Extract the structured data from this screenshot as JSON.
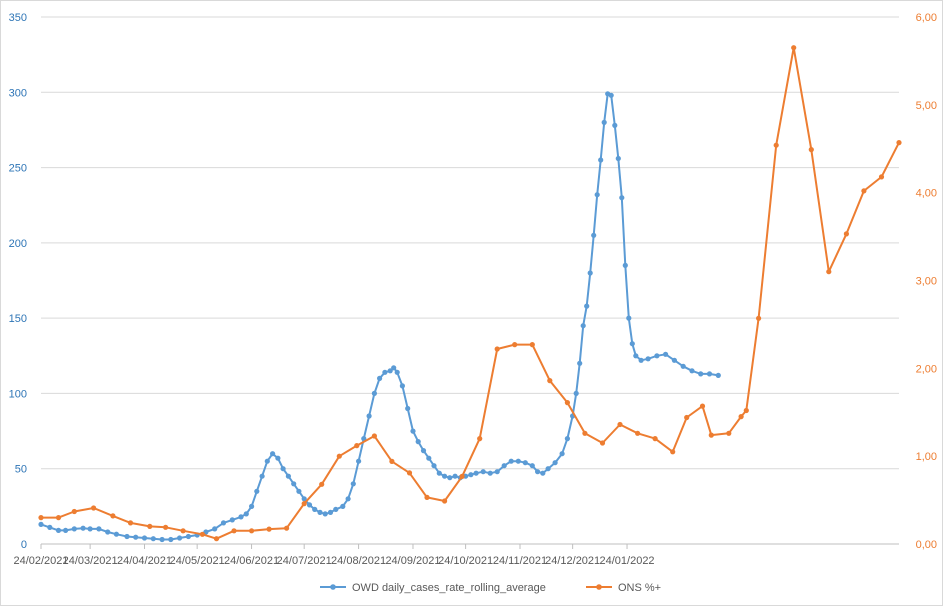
{
  "chart_data": {
    "type": "line",
    "x_type": "date",
    "x_ticks": [
      "24/02/2021",
      "24/03/2021",
      "24/04/2021",
      "24/05/2021",
      "24/06/2021",
      "24/07/2021",
      "24/08/2021",
      "24/09/2021",
      "24/10/2021",
      "24/11/2021",
      "24/12/2021",
      "24/01/2022"
    ],
    "y_left": {
      "ylim": [
        0,
        350
      ],
      "ticks": [
        "0",
        "50",
        "100",
        "150",
        "200",
        "250",
        "300",
        "350"
      ],
      "color": "#2e75b6"
    },
    "y_right": {
      "ylim": [
        0,
        6
      ],
      "ticks": [
        "0,00",
        "1,00",
        "2,00",
        "3,00",
        "4,00",
        "5,00",
        "6,00"
      ],
      "color": "#ed7d31"
    },
    "grid": "horizontal",
    "legend_position": "bottom",
    "series": [
      {
        "name": "OWD daily_cases_rate_rolling_average",
        "axis": "left",
        "color": "#5b9bd5",
        "marker": "circle",
        "points": [
          [
            "2021-02-24",
            13
          ],
          [
            "2021-03-01",
            11
          ],
          [
            "2021-03-06",
            9
          ],
          [
            "2021-03-10",
            9
          ],
          [
            "2021-03-15",
            10
          ],
          [
            "2021-03-20",
            10.5
          ],
          [
            "2021-03-24",
            10
          ],
          [
            "2021-03-29",
            10
          ],
          [
            "2021-04-03",
            8
          ],
          [
            "2021-04-08",
            6.5
          ],
          [
            "2021-04-14",
            5
          ],
          [
            "2021-04-19",
            4.5
          ],
          [
            "2021-04-24",
            4
          ],
          [
            "2021-04-29",
            3.5
          ],
          [
            "2021-05-04",
            3
          ],
          [
            "2021-05-09",
            3
          ],
          [
            "2021-05-14",
            4
          ],
          [
            "2021-05-19",
            5
          ],
          [
            "2021-05-24",
            6
          ],
          [
            "2021-05-29",
            8
          ],
          [
            "2021-06-03",
            10
          ],
          [
            "2021-06-08",
            14
          ],
          [
            "2021-06-13",
            16
          ],
          [
            "2021-06-18",
            18
          ],
          [
            "2021-06-21",
            20
          ],
          [
            "2021-06-24",
            25
          ],
          [
            "2021-06-27",
            35
          ],
          [
            "2021-06-30",
            45
          ],
          [
            "2021-07-03",
            55
          ],
          [
            "2021-07-06",
            60
          ],
          [
            "2021-07-09",
            57
          ],
          [
            "2021-07-12",
            50
          ],
          [
            "2021-07-15",
            45
          ],
          [
            "2021-07-18",
            40
          ],
          [
            "2021-07-21",
            35
          ],
          [
            "2021-07-24",
            30
          ],
          [
            "2021-07-27",
            26
          ],
          [
            "2021-07-30",
            23
          ],
          [
            "2021-08-02",
            21
          ],
          [
            "2021-08-05",
            20
          ],
          [
            "2021-08-08",
            21
          ],
          [
            "2021-08-11",
            23
          ],
          [
            "2021-08-15",
            25
          ],
          [
            "2021-08-18",
            30
          ],
          [
            "2021-08-21",
            40
          ],
          [
            "2021-08-24",
            55
          ],
          [
            "2021-08-27",
            70
          ],
          [
            "2021-08-30",
            85
          ],
          [
            "2021-09-02",
            100
          ],
          [
            "2021-09-05",
            110
          ],
          [
            "2021-09-08",
            114
          ],
          [
            "2021-09-11",
            115
          ],
          [
            "2021-09-13",
            117
          ],
          [
            "2021-09-15",
            114
          ],
          [
            "2021-09-18",
            105
          ],
          [
            "2021-09-21",
            90
          ],
          [
            "2021-09-24",
            75
          ],
          [
            "2021-09-27",
            68
          ],
          [
            "2021-09-30",
            62
          ],
          [
            "2021-10-03",
            57
          ],
          [
            "2021-10-06",
            52
          ],
          [
            "2021-10-09",
            47
          ],
          [
            "2021-10-12",
            45
          ],
          [
            "2021-10-15",
            44
          ],
          [
            "2021-10-18",
            45
          ],
          [
            "2021-10-21",
            44
          ],
          [
            "2021-10-24",
            45
          ],
          [
            "2021-10-27",
            46
          ],
          [
            "2021-10-30",
            47
          ],
          [
            "2021-11-03",
            48
          ],
          [
            "2021-11-07",
            47
          ],
          [
            "2021-11-11",
            48
          ],
          [
            "2021-11-15",
            52
          ],
          [
            "2021-11-19",
            55
          ],
          [
            "2021-11-23",
            55
          ],
          [
            "2021-11-27",
            54
          ],
          [
            "2021-12-01",
            52
          ],
          [
            "2021-12-04",
            48
          ],
          [
            "2021-12-07",
            47
          ],
          [
            "2021-12-10",
            50
          ],
          [
            "2021-12-14",
            54
          ],
          [
            "2021-12-18",
            60
          ],
          [
            "2021-12-21",
            70
          ],
          [
            "2021-12-24",
            85
          ],
          [
            "2021-12-26",
            100
          ],
          [
            "2021-12-28",
            120
          ],
          [
            "2021-12-30",
            145
          ],
          [
            "2022-01-01",
            158
          ],
          [
            "2022-01-03",
            180
          ],
          [
            "2022-01-05",
            205
          ],
          [
            "2022-01-07",
            232
          ],
          [
            "2022-01-09",
            255
          ],
          [
            "2022-01-11",
            280
          ],
          [
            "2022-01-13",
            299
          ],
          [
            "2022-01-15",
            298
          ],
          [
            "2022-01-17",
            278
          ],
          [
            "2022-01-19",
            256
          ],
          [
            "2022-01-21",
            230
          ],
          [
            "2022-01-23",
            185
          ],
          [
            "2022-01-25",
            150
          ],
          [
            "2022-01-27",
            133
          ],
          [
            "2022-01-29",
            125
          ],
          [
            "2022-02-01",
            122
          ],
          [
            "2022-02-05",
            123
          ],
          [
            "2022-02-10",
            125
          ],
          [
            "2022-02-15",
            126
          ],
          [
            "2022-02-20",
            122
          ],
          [
            "2022-02-25",
            118
          ],
          [
            "2022-03-02",
            115
          ],
          [
            "2022-03-07",
            113
          ],
          [
            "2022-03-12",
            113
          ],
          [
            "2022-03-17",
            112
          ]
        ]
      },
      {
        "name": "ONS %+",
        "axis": "right",
        "color": "#ed7d31",
        "marker": "circle",
        "points": [
          [
            "2021-02-24",
            0.3
          ],
          [
            "2021-03-06",
            0.3
          ],
          [
            "2021-03-15",
            0.37
          ],
          [
            "2021-03-26",
            0.41
          ],
          [
            "2021-04-06",
            0.32
          ],
          [
            "2021-04-16",
            0.24
          ],
          [
            "2021-04-27",
            0.2
          ],
          [
            "2021-05-06",
            0.19
          ],
          [
            "2021-05-16",
            0.15
          ],
          [
            "2021-05-27",
            0.11
          ],
          [
            "2021-06-04",
            0.06
          ],
          [
            "2021-06-14",
            0.15
          ],
          [
            "2021-06-24",
            0.15
          ],
          [
            "2021-07-04",
            0.17
          ],
          [
            "2021-07-14",
            0.18
          ],
          [
            "2021-07-24",
            0.46
          ],
          [
            "2021-08-03",
            0.68
          ],
          [
            "2021-08-13",
            1.0
          ],
          [
            "2021-08-23",
            1.12
          ],
          [
            "2021-09-02",
            1.23
          ],
          [
            "2021-09-12",
            0.94
          ],
          [
            "2021-09-22",
            0.81
          ],
          [
            "2021-10-02",
            0.53
          ],
          [
            "2021-10-12",
            0.49
          ],
          [
            "2021-10-22",
            0.77
          ],
          [
            "2021-11-01",
            1.2
          ],
          [
            "2021-11-11",
            2.22
          ],
          [
            "2021-11-21",
            2.27
          ],
          [
            "2021-12-01",
            2.27
          ],
          [
            "2021-12-11",
            1.86
          ],
          [
            "2021-12-21",
            1.61
          ],
          [
            "2021-12-31",
            1.26
          ],
          [
            "2022-01-10",
            1.15
          ],
          [
            "2022-01-20",
            1.36
          ],
          [
            "2022-01-30",
            1.26
          ],
          [
            "2022-02-09",
            1.2
          ],
          [
            "2022-02-19",
            1.05
          ],
          [
            "2022-02-27",
            1.44
          ],
          [
            "2022-03-08",
            1.57
          ],
          [
            "2022-03-13",
            1.24
          ],
          [
            "2022-03-23",
            1.26
          ],
          [
            "2022-03-30",
            1.45
          ],
          [
            "2022-04-02",
            1.52
          ],
          [
            "2022-04-09",
            2.57
          ],
          [
            "2022-04-19",
            4.54
          ],
          [
            "2022-04-29",
            5.65
          ],
          [
            "2022-05-09",
            4.49
          ],
          [
            "2022-05-19",
            3.1
          ],
          [
            "2022-05-29",
            3.53
          ],
          [
            "2022-06-08",
            4.02
          ],
          [
            "2022-06-18",
            4.18
          ],
          [
            "2022-06-28",
            4.57
          ]
        ]
      }
    ]
  }
}
